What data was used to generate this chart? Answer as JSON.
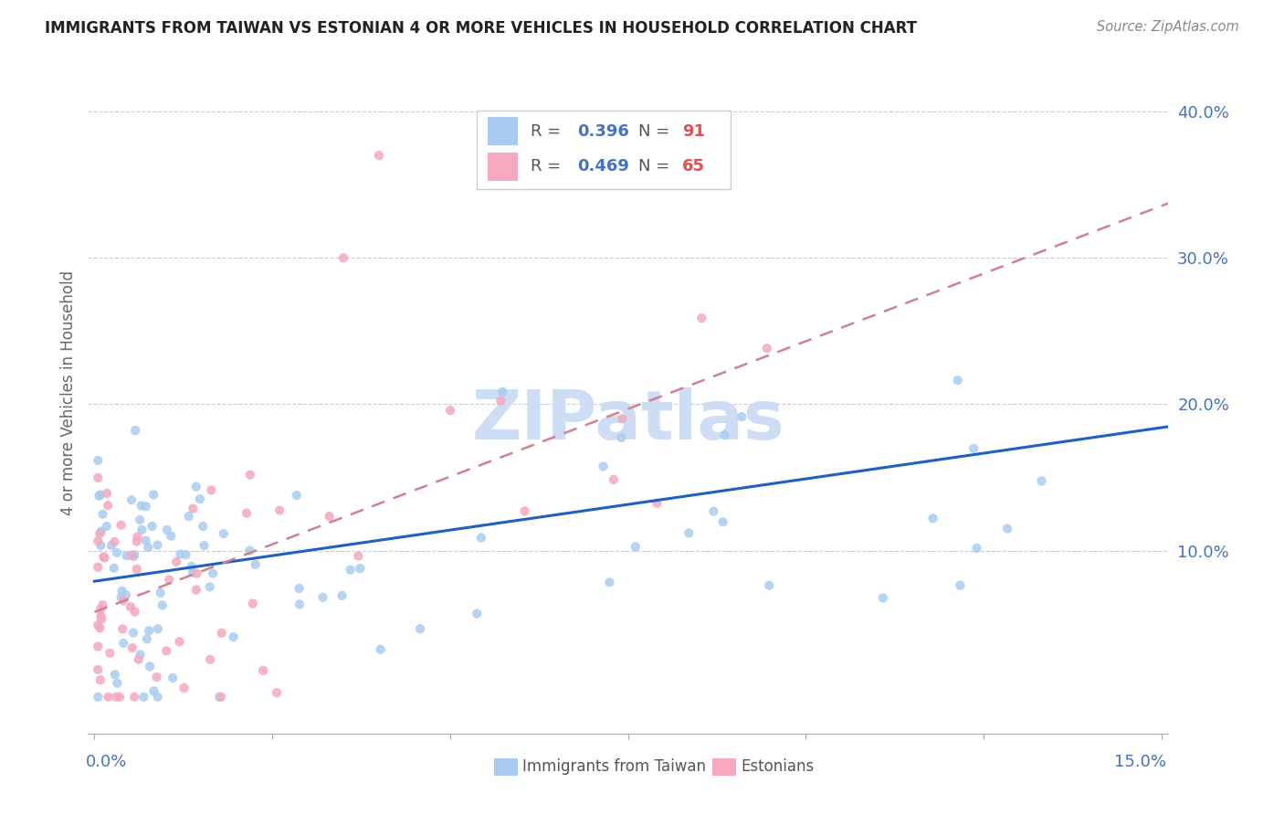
{
  "title": "IMMIGRANTS FROM TAIWAN VS ESTONIAN 4 OR MORE VEHICLES IN HOUSEHOLD CORRELATION CHART",
  "source": "Source: ZipAtlas.com",
  "ylabel": "4 or more Vehicles in Household",
  "r_taiwan": 0.396,
  "n_taiwan": 91,
  "r_estonian": 0.469,
  "n_estonian": 65,
  "color_taiwan": "#a8ccf0",
  "color_estonian": "#f5a8be",
  "color_taiwan_line": "#2060c0",
  "color_estonian_line": "#d08090",
  "watermark_color": "#ccddf5",
  "xlim_max": 0.15,
  "ylim_min": -0.025,
  "ylim_max": 0.44,
  "taiwan_intercept": 0.079,
  "taiwan_slope": 0.7,
  "estonian_intercept": 0.058,
  "estonian_slope": 1.85
}
